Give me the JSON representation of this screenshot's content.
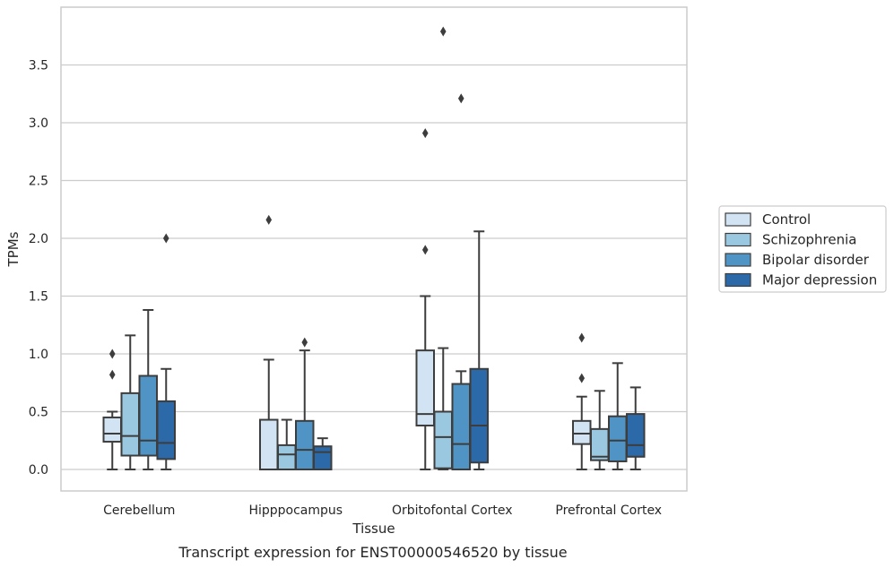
{
  "caption": "Transcript expression for ENST00000546520 by tissue",
  "chart_data": {
    "type": "box",
    "xlabel": "Tissue",
    "ylabel": "TPMs",
    "ylim": [
      -0.18,
      3.98
    ],
    "yticks": [
      0.0,
      0.5,
      1.0,
      1.5,
      2.0,
      2.5,
      3.0,
      3.5
    ],
    "ytick_labels": [
      "0.0",
      "0.5",
      "1.0",
      "1.5",
      "2.0",
      "2.5",
      "3.0",
      "3.5"
    ],
    "grid": "horizontal",
    "legend_position": "right",
    "categories": [
      "Cerebellum",
      "Hipppocampus",
      "Orbitofontal Cortex",
      "Prefrontal Cortex"
    ],
    "series": [
      {
        "name": "Control",
        "color": "#d2e3f3",
        "boxes": [
          {
            "whislo": 0.0,
            "q1": 0.24,
            "med": 0.31,
            "q3": 0.45,
            "whishi": 0.5,
            "fliers": [
              0.82,
              1.0
            ]
          },
          {
            "whislo": 0.0,
            "q1": 0.0,
            "med": 0.0,
            "q3": 0.43,
            "whishi": 0.95,
            "fliers": [
              2.16
            ]
          },
          {
            "whislo": 0.0,
            "q1": 0.38,
            "med": 0.48,
            "q3": 1.03,
            "whishi": 1.5,
            "fliers": [
              1.9,
              2.91
            ]
          },
          {
            "whislo": 0.0,
            "q1": 0.22,
            "med": 0.31,
            "q3": 0.42,
            "whishi": 0.63,
            "fliers": [
              0.79,
              1.14
            ]
          }
        ]
      },
      {
        "name": "Schizophrenia",
        "color": "#9ac8e0",
        "boxes": [
          {
            "whislo": 0.0,
            "q1": 0.12,
            "med": 0.29,
            "q3": 0.66,
            "whishi": 1.16,
            "fliers": []
          },
          {
            "whislo": 0.0,
            "q1": 0.0,
            "med": 0.13,
            "q3": 0.21,
            "whishi": 0.43,
            "fliers": []
          },
          {
            "whislo": 0.0,
            "q1": 0.01,
            "med": 0.28,
            "q3": 0.5,
            "whishi": 1.05,
            "fliers": [
              3.79
            ]
          },
          {
            "whislo": 0.0,
            "q1": 0.08,
            "med": 0.11,
            "q3": 0.35,
            "whishi": 0.68,
            "fliers": []
          }
        ]
      },
      {
        "name": "Bipolar disorder",
        "color": "#4f94c4",
        "boxes": [
          {
            "whislo": 0.0,
            "q1": 0.12,
            "med": 0.25,
            "q3": 0.81,
            "whishi": 1.38,
            "fliers": []
          },
          {
            "whislo": 0.0,
            "q1": 0.0,
            "med": 0.17,
            "q3": 0.42,
            "whishi": 1.03,
            "fliers": [
              1.1
            ]
          },
          {
            "whislo": 0.0,
            "q1": 0.0,
            "med": 0.22,
            "q3": 0.74,
            "whishi": 0.85,
            "fliers": [
              3.21
            ]
          },
          {
            "whislo": 0.0,
            "q1": 0.07,
            "med": 0.25,
            "q3": 0.46,
            "whishi": 0.92,
            "fliers": []
          }
        ]
      },
      {
        "name": "Major depression",
        "color": "#2c69a8",
        "boxes": [
          {
            "whislo": 0.0,
            "q1": 0.09,
            "med": 0.23,
            "q3": 0.59,
            "whishi": 0.87,
            "fliers": [
              2.0
            ]
          },
          {
            "whislo": 0.0,
            "q1": 0.0,
            "med": 0.15,
            "q3": 0.2,
            "whishi": 0.27,
            "fliers": []
          },
          {
            "whislo": 0.0,
            "q1": 0.06,
            "med": 0.38,
            "q3": 0.87,
            "whishi": 2.06,
            "fliers": []
          },
          {
            "whislo": 0.0,
            "q1": 0.11,
            "med": 0.21,
            "q3": 0.48,
            "whishi": 0.71,
            "fliers": []
          }
        ]
      }
    ]
  }
}
